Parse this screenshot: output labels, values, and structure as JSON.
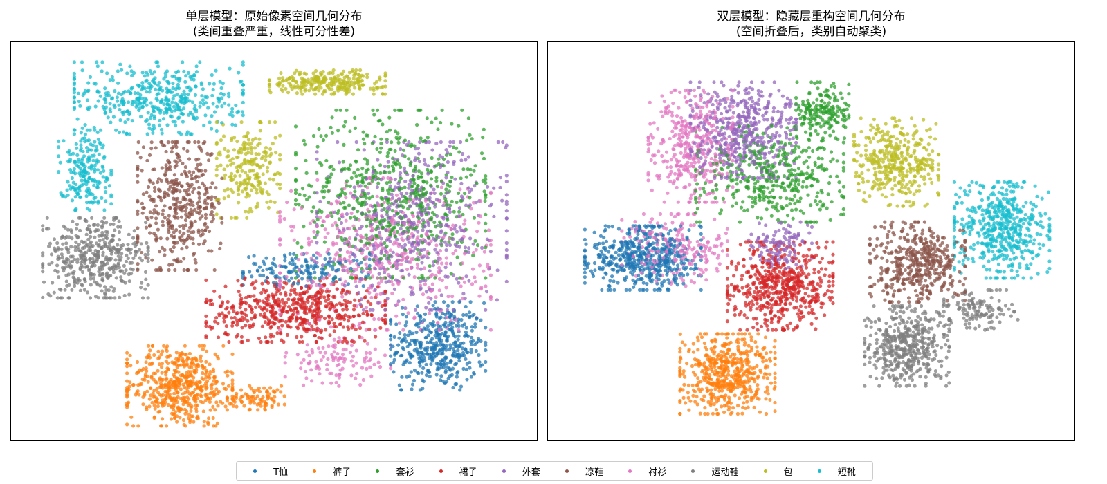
{
  "legend": [
    {
      "label": "T恤",
      "color": "#1f77b4"
    },
    {
      "label": "裤子",
      "color": "#ff7f0e"
    },
    {
      "label": "套衫",
      "color": "#2ca02c"
    },
    {
      "label": "裙子",
      "color": "#d62728"
    },
    {
      "label": "外套",
      "color": "#9467bd"
    },
    {
      "label": "凉鞋",
      "color": "#8c564b"
    },
    {
      "label": "衬衫",
      "color": "#e377c2"
    },
    {
      "label": "运动鞋",
      "color": "#7f7f7f"
    },
    {
      "label": "包",
      "color": "#bcbd22"
    },
    {
      "label": "短靴",
      "color": "#17becf"
    }
  ],
  "chart_data": [
    {
      "type": "scatter",
      "title": "单层模型：原始像素空间几何分布",
      "subtitle": "(类间重叠严重，线性可分性差)",
      "xlabel": "",
      "ylabel": "",
      "xlim": [
        0,
        100
      ],
      "ylim": [
        0,
        100
      ],
      "grid": false,
      "legend_position": "bottom-center",
      "clusters": [
        {
          "name": "T恤",
          "blobs": [
            [
              81,
              24,
              9,
              11,
              420
            ],
            [
              56,
              43,
              12,
              4,
              160
            ]
          ]
        },
        {
          "name": "裤子",
          "blobs": [
            [
              32,
              14,
              10,
              10,
              520
            ],
            [
              47,
              11,
              6,
              3,
              90
            ]
          ]
        },
        {
          "name": "套衫",
          "blobs": [
            [
              72,
              62,
              18,
              21,
              600
            ]
          ]
        },
        {
          "name": "裙子",
          "blobs": [
            [
              54,
              33,
              17,
              8,
              560
            ]
          ]
        },
        {
          "name": "外套",
          "blobs": [
            [
              76,
              54,
              18,
              21,
              520
            ]
          ]
        },
        {
          "name": "凉鞋",
          "blobs": [
            [
              32,
              59,
              8,
              16,
              420
            ]
          ]
        },
        {
          "name": "衬衫",
          "blobs": [
            [
              71,
              47,
              20,
              19,
              480
            ],
            [
              62,
              20,
              10,
              6,
              110
            ]
          ]
        },
        {
          "name": "运动鞋",
          "blobs": [
            [
              16,
              46,
              10,
              10,
              440
            ]
          ]
        },
        {
          "name": "包",
          "blobs": [
            [
              60,
              90,
              11,
              3,
              260
            ],
            [
              45,
              68,
              6,
              12,
              230
            ]
          ]
        },
        {
          "name": "短靴",
          "blobs": [
            [
              28,
              86,
              16,
              9,
              440
            ],
            [
              14,
              68,
              5,
              10,
              200
            ]
          ]
        }
      ]
    },
    {
      "type": "scatter",
      "title": "双层模型：隐藏层重构空间几何分布",
      "subtitle": "(空间折叠后，类别自动聚类)",
      "xlabel": "",
      "ylabel": "",
      "xlim": [
        0,
        100
      ],
      "ylim": [
        0,
        100
      ],
      "grid": false,
      "legend_position": "bottom-center",
      "clusters": [
        {
          "name": "T恤",
          "blobs": [
            [
              18,
              46,
              11,
              8,
              520
            ]
          ]
        },
        {
          "name": "裤子",
          "blobs": [
            [
              34,
              17,
              9,
              10,
              520
            ]
          ]
        },
        {
          "name": "套衫",
          "blobs": [
            [
              42,
              67,
              14,
              12,
              420
            ],
            [
              52,
              83,
              5,
              7,
              180
            ]
          ]
        },
        {
          "name": "裙子",
          "blobs": [
            [
              44,
              39,
              10,
              11,
              560
            ]
          ]
        },
        {
          "name": "外套",
          "blobs": [
            [
              37,
              78,
              10,
              12,
              480
            ],
            [
              44,
              49,
              6,
              6,
              120
            ]
          ]
        },
        {
          "name": "凉鞋",
          "blobs": [
            [
              70,
              45,
              9,
              10,
              460
            ]
          ]
        },
        {
          "name": "衬衫",
          "blobs": [
            [
              27,
              74,
              8,
              14,
              380
            ],
            [
              24,
              48,
              10,
              9,
              200
            ]
          ]
        },
        {
          "name": "运动鞋",
          "blobs": [
            [
              68,
              24,
              8,
              10,
              460
            ],
            [
              82,
              33,
              7,
              5,
              120
            ]
          ]
        },
        {
          "name": "包",
          "blobs": [
            [
              66,
              70,
              8,
              11,
              380
            ]
          ]
        },
        {
          "name": "短靴",
          "blobs": [
            [
              86,
              53,
              9,
              12,
              500
            ]
          ]
        }
      ]
    }
  ]
}
